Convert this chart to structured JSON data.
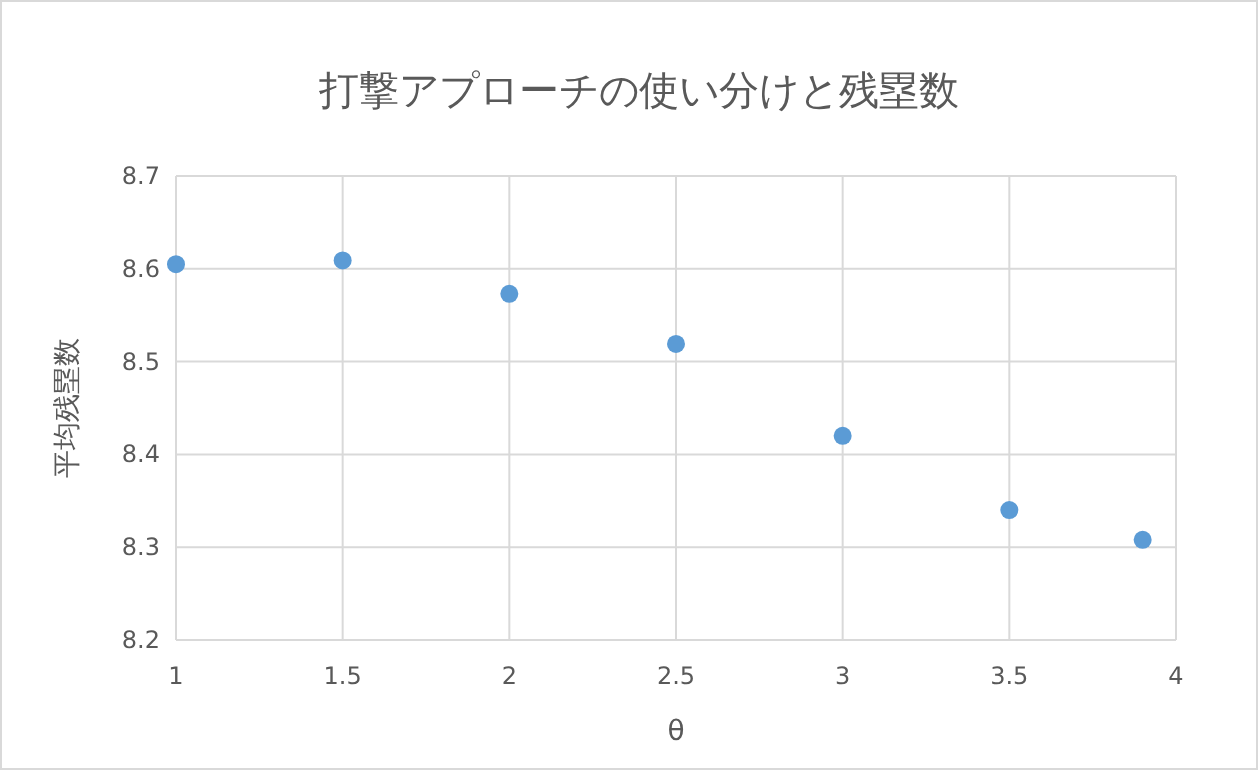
{
  "chart_data": {
    "type": "scatter",
    "title": "打撃アプローチの使い分けと残塁数",
    "xlabel": "θ",
    "ylabel": "平均残塁数",
    "x": [
      1,
      1.5,
      2,
      2.5,
      3,
      3.5,
      3.9
    ],
    "series": [
      {
        "color": "#5b9bd5",
        "values": [
          8.605,
          8.609,
          8.573,
          8.519,
          8.42,
          8.34,
          8.308
        ]
      }
    ],
    "xlim": [
      1,
      4
    ],
    "xticks": [
      1,
      1.5,
      2,
      2.5,
      3,
      3.5,
      4
    ],
    "ylim": [
      8.2,
      8.7
    ],
    "yticks": [
      8.2,
      8.3,
      8.4,
      8.5,
      8.6,
      8.7
    ],
    "grid": true,
    "marker": "circle"
  }
}
